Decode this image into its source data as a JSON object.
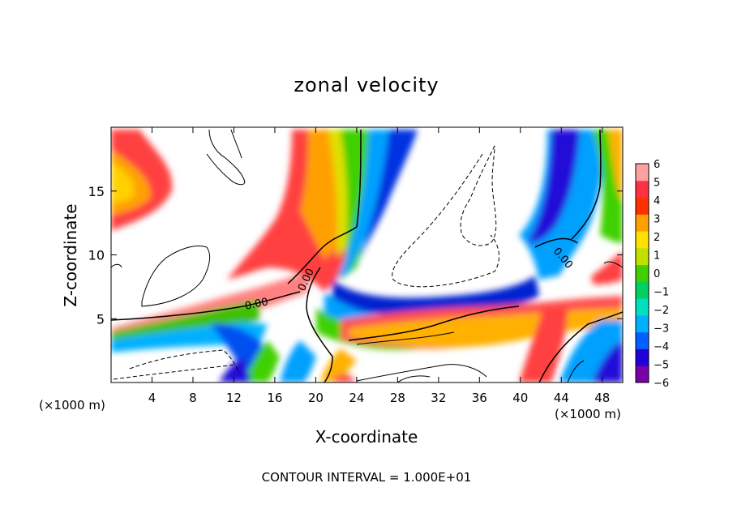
{
  "chart_data": {
    "type": "heatmap",
    "title": "zonal velocity",
    "xlabel": "X-coordinate",
    "ylabel": "Z-coordinate",
    "x_unit_label": "(×1000 m)",
    "x_unit_label_right": "(×1000 m)",
    "footer": "CONTOUR INTERVAL = 1.000E+01",
    "xlim": [
      0,
      50
    ],
    "ylim": [
      0,
      20
    ],
    "xticks": [
      4,
      8,
      12,
      16,
      20,
      24,
      28,
      32,
      36,
      40,
      44,
      48
    ],
    "xtick_labels": [
      "4",
      "8",
      "12",
      "16",
      "20",
      "24",
      "28",
      "32",
      "36",
      "40",
      "44",
      "48"
    ],
    "yticks": [
      5,
      10,
      15
    ],
    "ytick_labels": [
      "5",
      "10",
      "15"
    ],
    "colorbar": {
      "min": -6,
      "max": 6,
      "ticks": [
        6,
        5,
        4,
        3,
        2,
        1,
        0,
        -1,
        -2,
        -3,
        -4,
        -5,
        -6
      ],
      "tick_labels": [
        "6",
        "5",
        "4",
        "3",
        "2",
        "1",
        "0",
        "−1",
        "−2",
        "−3",
        "−4",
        "−5",
        "−6"
      ],
      "colors": [
        "#7a00a8",
        "#2200d8",
        "#0060ff",
        "#00b0ff",
        "#00e0c0",
        "#00d060",
        "#40d000",
        "#c0e000",
        "#ffe000",
        "#ffa000",
        "#ff3000",
        "#ff3040",
        "#ffa0a0"
      ]
    },
    "contour_labels": [
      "0.00",
      "0.00",
      "0.00"
    ],
    "features": [
      {
        "name": "upper-left positive lobe",
        "value": 3,
        "x": 2.5,
        "y": 16
      },
      {
        "name": "lower shear layer",
        "value": 1,
        "x": 8,
        "y": 5
      },
      {
        "name": "main positive column",
        "value": 4,
        "x": 20,
        "y": 14
      },
      {
        "name": "negative band",
        "value": -4,
        "x": 27,
        "y": 15
      },
      {
        "name": "central negative channel",
        "value": -5,
        "x": 30,
        "y": 7
      },
      {
        "name": "lower positive band",
        "value": 2,
        "x": 32,
        "y": 4
      },
      {
        "name": "right negative column",
        "value": -4,
        "x": 44,
        "y": 14
      },
      {
        "name": "lower right positive",
        "value": 4,
        "x": 41,
        "y": 2
      }
    ]
  }
}
